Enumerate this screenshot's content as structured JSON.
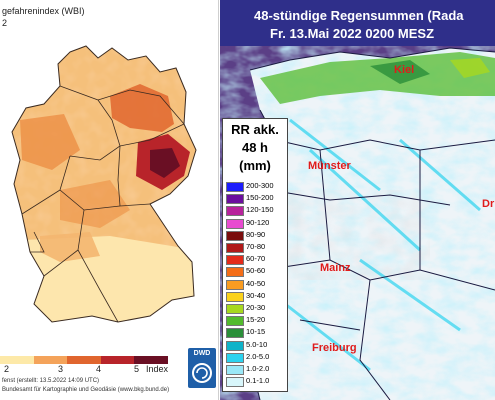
{
  "wbi_panel": {
    "title": "gefahrenindex (WBI)",
    "subtitle": "2",
    "scale": {
      "labels": [
        "2",
        "3",
        "4",
        "5",
        "Index"
      ],
      "colors": [
        "#fde9a8",
        "#f4a35a",
        "#e0652e",
        "#b8242a",
        "#6a0f24"
      ]
    },
    "footer_line1": "fenst (erstellt: 13.5.2022 14:09 UTC)",
    "footer_line2": "Bundesamt für Kartographie und Geodäsie (www.bkg.bund.de)",
    "logo_text": "DWD"
  },
  "radar_panel": {
    "title_line1": "48-stündige Regensummen (Rada",
    "title_line2": "Fr. 13.Mai 2022 0200 MESZ",
    "legend_title_1": "RR akk.",
    "legend_title_2": "48 h",
    "legend_title_3": "(mm)",
    "legend": [
      {
        "label": "200-300",
        "color": "#1d1dfc"
      },
      {
        "label": "150-200",
        "color": "#6b0f9e"
      },
      {
        "label": "120-150",
        "color": "#b8239c"
      },
      {
        "label": "90-120",
        "color": "#e84bd0"
      },
      {
        "label": "80-90",
        "color": "#7a0d0d"
      },
      {
        "label": "70-80",
        "color": "#b11a1a"
      },
      {
        "label": "60-70",
        "color": "#e42b1b"
      },
      {
        "label": "50-60",
        "color": "#f46d18"
      },
      {
        "label": "40-50",
        "color": "#f99c21"
      },
      {
        "label": "30-40",
        "color": "#fbd21c"
      },
      {
        "label": "20-30",
        "color": "#a7d81f"
      },
      {
        "label": "15-20",
        "color": "#53bb2d"
      },
      {
        "label": "10-15",
        "color": "#2b8f3a"
      },
      {
        "label": "5.0-10",
        "color": "#0fb3c9"
      },
      {
        "label": "2.0-5.0",
        "color": "#2cd3ef"
      },
      {
        "label": "1.0-2.0",
        "color": "#9ae8f7"
      },
      {
        "label": "0.1-1.0",
        "color": "#d8f6fb"
      }
    ],
    "cities": {
      "kiel": "Kiel",
      "munster": "Münster",
      "mainz": "Mainz",
      "freiburg": "Freiburg",
      "dresden": "Dr"
    }
  }
}
